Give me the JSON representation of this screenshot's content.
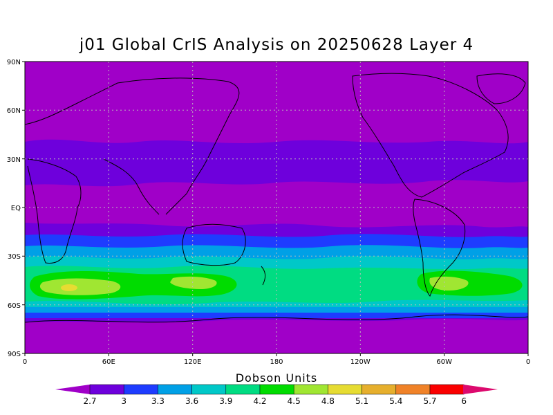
{
  "title": "j01 Global CrIS Analysis on 20250628 Layer 4",
  "colorbar": {
    "label": "Dobson Units",
    "ticks": [
      "2.7",
      "3",
      "3.3",
      "3.6",
      "3.9",
      "4.2",
      "4.5",
      "4.8",
      "5.1",
      "5.4",
      "5.7",
      "6"
    ],
    "colors": [
      "#a000c8",
      "#6e00dc",
      "#1e3cff",
      "#00a0e6",
      "#00c8c8",
      "#00dc82",
      "#00dc00",
      "#a0e632",
      "#e6dc32",
      "#e6af2d",
      "#f08228",
      "#fa0000",
      "#dc0a6e"
    ]
  },
  "axes": {
    "y_labels": [
      "90N",
      "60N",
      "30N",
      "EQ",
      "30S",
      "60S",
      "90S"
    ],
    "x_labels": [
      "0",
      "60E",
      "120E",
      "180",
      "120W",
      "60W",
      "0"
    ],
    "grid": "dotted"
  },
  "chart_data": {
    "type": "heatmap",
    "title": "j01 Global CrIS Analysis on 20250628 Layer 4",
    "xlabel": "",
    "ylabel": "",
    "colorbar_label": "Dobson Units",
    "xlim": [
      0,
      360
    ],
    "ylim": [
      -90,
      90
    ],
    "zone_levels": [
      {
        "lat": [
          60,
          90
        ],
        "value": 2.7
      },
      {
        "lat": [
          38,
          60
        ],
        "value": 2.7
      },
      {
        "lat": [
          28,
          38
        ],
        "value": 3.0
      },
      {
        "lat": [
          -15,
          28
        ],
        "value": 2.7
      },
      {
        "lat": [
          -25,
          -15
        ],
        "value": 3.0
      },
      {
        "lat": [
          -32,
          -25
        ],
        "value": 3.3
      },
      {
        "lat": [
          -38,
          -32
        ],
        "value": 3.6
      },
      {
        "lat": [
          -44,
          -38
        ],
        "value": 3.9
      },
      {
        "lat": [
          -55,
          -44
        ],
        "value": 4.2
      },
      {
        "lat": [
          -60,
          -55
        ],
        "value": 3.6
      },
      {
        "lat": [
          -66,
          -60
        ],
        "value": 3.0
      },
      {
        "lat": [
          -90,
          -66
        ],
        "value": 2.7
      }
    ],
    "maxima": [
      {
        "lon": 30,
        "lat": -50,
        "value": 5.1
      },
      {
        "lon": 90,
        "lat": -48,
        "value": 4.8
      },
      {
        "lon": 300,
        "lat": -48,
        "value": 4.8
      }
    ]
  }
}
